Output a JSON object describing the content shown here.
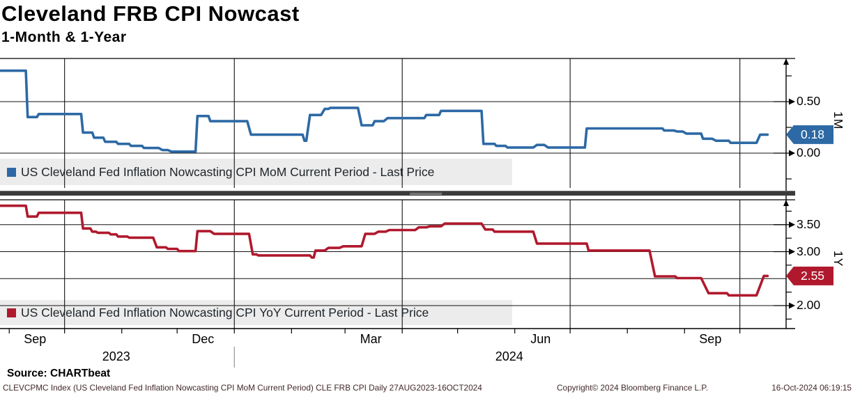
{
  "header": {
    "title": "Cleveland FRB CPI Nowcast",
    "subtitle": "1-Month & 1-Year"
  },
  "source_line": "Source: CHARTbeat",
  "footer": {
    "left": "CLEVCPMC Index (US Cleveland Fed Inflation Nowcasting CPI MoM Current Period) CLE FRB CPI  Daily 27AUG2023-16OCT2024",
    "copyright": "Copyright© 2024 Bloomberg Finance L.P.",
    "datetime": "16-Oct-2024 06:19:15"
  },
  "colors": {
    "mom_line": "#2d69a5",
    "yoy_line": "#b0192d",
    "legend_band": "#ececec",
    "grid": "#111111",
    "divider": "#3b3b3b"
  },
  "x_axis": {
    "start": "2023-08-27",
    "end": "2024-10-16",
    "month_labels": [
      {
        "label": "Sep",
        "date": "2023-09-15"
      },
      {
        "label": "Dec",
        "date": "2023-12-15"
      },
      {
        "label": "Mar",
        "date": "2024-03-15"
      },
      {
        "label": "Jun",
        "date": "2024-06-15"
      },
      {
        "label": "Sep",
        "date": "2024-09-15"
      }
    ],
    "year_labels": [
      {
        "label": "2023",
        "date": "2023-10-29"
      },
      {
        "label": "2024",
        "date": "2024-05-29"
      }
    ],
    "month_ticks": [
      "2023-09-01",
      "2023-10-01",
      "2023-11-01",
      "2023-12-01",
      "2024-01-01",
      "2024-02-01",
      "2024-03-01",
      "2024-04-01",
      "2024-05-01",
      "2024-06-01",
      "2024-07-01",
      "2024-08-01",
      "2024-09-01",
      "2024-10-01"
    ],
    "quarter_gridlines": [
      "2023-10-01",
      "2024-01-01",
      "2024-04-01",
      "2024-07-01",
      "2024-10-01"
    ],
    "year_separator": "2024-01-01"
  },
  "chart_data": [
    {
      "type": "line",
      "panel": "1M",
      "axis_side_label": "1M",
      "legend": "US Cleveland Fed Inflation Nowcasting CPI MoM Current Period - Last Price",
      "color": "#2d69a5",
      "last_price": "0.18",
      "ylim": [
        -0.36,
        0.92
      ],
      "yticks_labeled": [
        {
          "v": 0.5,
          "label": "0.50"
        },
        {
          "v": 0.0,
          "label": "0.00"
        }
      ],
      "gridlines_y": [
        0.5,
        0.0
      ],
      "minor_ticks": [
        0.75,
        0.25,
        -0.25
      ],
      "points": [
        [
          "2023-08-27",
          0.8
        ],
        [
          "2023-09-10",
          0.8
        ],
        [
          "2023-09-11",
          0.35
        ],
        [
          "2023-09-16",
          0.35
        ],
        [
          "2023-09-17",
          0.38
        ],
        [
          "2023-10-10",
          0.38
        ],
        [
          "2023-10-11",
          0.2
        ],
        [
          "2023-10-16",
          0.2
        ],
        [
          "2023-10-17",
          0.15
        ],
        [
          "2023-10-22",
          0.15
        ],
        [
          "2023-10-23",
          0.11
        ],
        [
          "2023-10-29",
          0.11
        ],
        [
          "2023-10-30",
          0.09
        ],
        [
          "2023-11-05",
          0.09
        ],
        [
          "2023-11-06",
          0.07
        ],
        [
          "2023-11-12",
          0.07
        ],
        [
          "2023-11-13",
          0.05
        ],
        [
          "2023-11-21",
          0.05
        ],
        [
          "2023-11-23",
          0.03
        ],
        [
          "2023-11-26",
          0.03
        ],
        [
          "2023-11-28",
          0.015
        ],
        [
          "2023-12-11",
          0.015
        ],
        [
          "2023-12-12",
          0.36
        ],
        [
          "2023-12-18",
          0.36
        ],
        [
          "2023-12-19",
          0.31
        ],
        [
          "2024-01-08",
          0.31
        ],
        [
          "2024-01-10",
          0.18
        ],
        [
          "2024-02-07",
          0.18
        ],
        [
          "2024-02-08",
          0.12
        ],
        [
          "2024-02-09",
          0.12
        ],
        [
          "2024-02-11",
          0.37
        ],
        [
          "2024-02-17",
          0.37
        ],
        [
          "2024-02-19",
          0.43
        ],
        [
          "2024-02-21",
          0.43
        ],
        [
          "2024-02-22",
          0.44
        ],
        [
          "2024-03-08",
          0.44
        ],
        [
          "2024-03-10",
          0.27
        ],
        [
          "2024-03-16",
          0.27
        ],
        [
          "2024-03-17",
          0.31
        ],
        [
          "2024-03-22",
          0.31
        ],
        [
          "2024-03-24",
          0.34
        ],
        [
          "2024-04-13",
          0.34
        ],
        [
          "2024-04-14",
          0.37
        ],
        [
          "2024-04-21",
          0.37
        ],
        [
          "2024-04-22",
          0.41
        ],
        [
          "2024-05-14",
          0.41
        ],
        [
          "2024-05-15",
          0.09
        ],
        [
          "2024-05-21",
          0.09
        ],
        [
          "2024-05-22",
          0.07
        ],
        [
          "2024-05-27",
          0.07
        ],
        [
          "2024-05-28",
          0.055
        ],
        [
          "2024-06-11",
          0.055
        ],
        [
          "2024-06-13",
          0.08
        ],
        [
          "2024-06-17",
          0.08
        ],
        [
          "2024-06-19",
          0.055
        ],
        [
          "2024-07-09",
          0.055
        ],
        [
          "2024-07-10",
          0.24
        ],
        [
          "2024-08-20",
          0.24
        ],
        [
          "2024-08-21",
          0.22
        ],
        [
          "2024-08-26",
          0.22
        ],
        [
          "2024-08-28",
          0.21
        ],
        [
          "2024-08-31",
          0.21
        ],
        [
          "2024-09-02",
          0.19
        ],
        [
          "2024-09-10",
          0.19
        ],
        [
          "2024-09-11",
          0.14
        ],
        [
          "2024-09-16",
          0.14
        ],
        [
          "2024-09-18",
          0.12
        ],
        [
          "2024-09-25",
          0.12
        ],
        [
          "2024-09-26",
          0.1
        ],
        [
          "2024-10-10",
          0.1
        ],
        [
          "2024-10-12",
          0.18
        ],
        [
          "2024-10-16",
          0.18
        ]
      ]
    },
    {
      "type": "line",
      "panel": "1Y",
      "axis_side_label": "1Y",
      "legend": "US Cleveland Fed Inflation Nowcasting CPI YoY Current Period - Last Price",
      "color": "#b0192d",
      "last_price": "2.55",
      "ylim": [
        1.57,
        3.94
      ],
      "yticks_labeled": [
        {
          "v": 3.5,
          "label": "3.50"
        },
        {
          "v": 3.0,
          "label": "3.00"
        },
        {
          "v": 2.0,
          "label": "2.00"
        }
      ],
      "gridlines_y": [
        3.5,
        3.0,
        2.5,
        2.0
      ],
      "minor_ticks": [
        3.75,
        3.25,
        2.75,
        2.25,
        1.75
      ],
      "points": [
        [
          "2023-08-27",
          3.85
        ],
        [
          "2023-09-10",
          3.85
        ],
        [
          "2023-09-11",
          3.65
        ],
        [
          "2023-09-16",
          3.65
        ],
        [
          "2023-09-17",
          3.72
        ],
        [
          "2023-10-10",
          3.72
        ],
        [
          "2023-10-11",
          3.43
        ],
        [
          "2023-10-15",
          3.43
        ],
        [
          "2023-10-16",
          3.37
        ],
        [
          "2023-10-18",
          3.37
        ],
        [
          "2023-10-19",
          3.35
        ],
        [
          "2023-10-25",
          3.35
        ],
        [
          "2023-10-26",
          3.32
        ],
        [
          "2023-10-29",
          3.32
        ],
        [
          "2023-10-30",
          3.28
        ],
        [
          "2023-11-04",
          3.28
        ],
        [
          "2023-11-05",
          3.26
        ],
        [
          "2023-11-18",
          3.26
        ],
        [
          "2023-11-20",
          3.08
        ],
        [
          "2023-11-25",
          3.08
        ],
        [
          "2023-11-26",
          3.05
        ],
        [
          "2023-12-01",
          3.05
        ],
        [
          "2023-12-02",
          3.01
        ],
        [
          "2023-12-11",
          3.01
        ],
        [
          "2023-12-12",
          3.38
        ],
        [
          "2023-12-19",
          3.38
        ],
        [
          "2023-12-21",
          3.33
        ],
        [
          "2024-01-09",
          3.33
        ],
        [
          "2024-01-11",
          2.95
        ],
        [
          "2024-01-13",
          2.95
        ],
        [
          "2024-01-14",
          2.93
        ],
        [
          "2024-02-11",
          2.93
        ],
        [
          "2024-02-12",
          2.89
        ],
        [
          "2024-02-13",
          2.89
        ],
        [
          "2024-02-14",
          3.02
        ],
        [
          "2024-02-19",
          3.02
        ],
        [
          "2024-02-21",
          3.07
        ],
        [
          "2024-02-27",
          3.07
        ],
        [
          "2024-02-29",
          3.1
        ],
        [
          "2024-03-10",
          3.1
        ],
        [
          "2024-03-12",
          3.33
        ],
        [
          "2024-03-17",
          3.33
        ],
        [
          "2024-03-19",
          3.37
        ],
        [
          "2024-03-23",
          3.37
        ],
        [
          "2024-03-25",
          3.4
        ],
        [
          "2024-04-08",
          3.4
        ],
        [
          "2024-04-10",
          3.45
        ],
        [
          "2024-04-14",
          3.45
        ],
        [
          "2024-04-16",
          3.47
        ],
        [
          "2024-04-22",
          3.47
        ],
        [
          "2024-04-24",
          3.52
        ],
        [
          "2024-05-14",
          3.52
        ],
        [
          "2024-05-16",
          3.41
        ],
        [
          "2024-05-20",
          3.41
        ],
        [
          "2024-05-21",
          3.37
        ],
        [
          "2024-06-11",
          3.37
        ],
        [
          "2024-06-13",
          3.15
        ],
        [
          "2024-07-10",
          3.15
        ],
        [
          "2024-07-11",
          3.02
        ],
        [
          "2024-08-13",
          3.02
        ],
        [
          "2024-08-16",
          2.54
        ],
        [
          "2024-08-27",
          2.54
        ],
        [
          "2024-08-28",
          2.51
        ],
        [
          "2024-09-10",
          2.51
        ],
        [
          "2024-09-14",
          2.23
        ],
        [
          "2024-09-24",
          2.23
        ],
        [
          "2024-09-25",
          2.19
        ],
        [
          "2024-10-10",
          2.19
        ],
        [
          "2024-10-14",
          2.55
        ],
        [
          "2024-10-16",
          2.55
        ]
      ]
    }
  ]
}
